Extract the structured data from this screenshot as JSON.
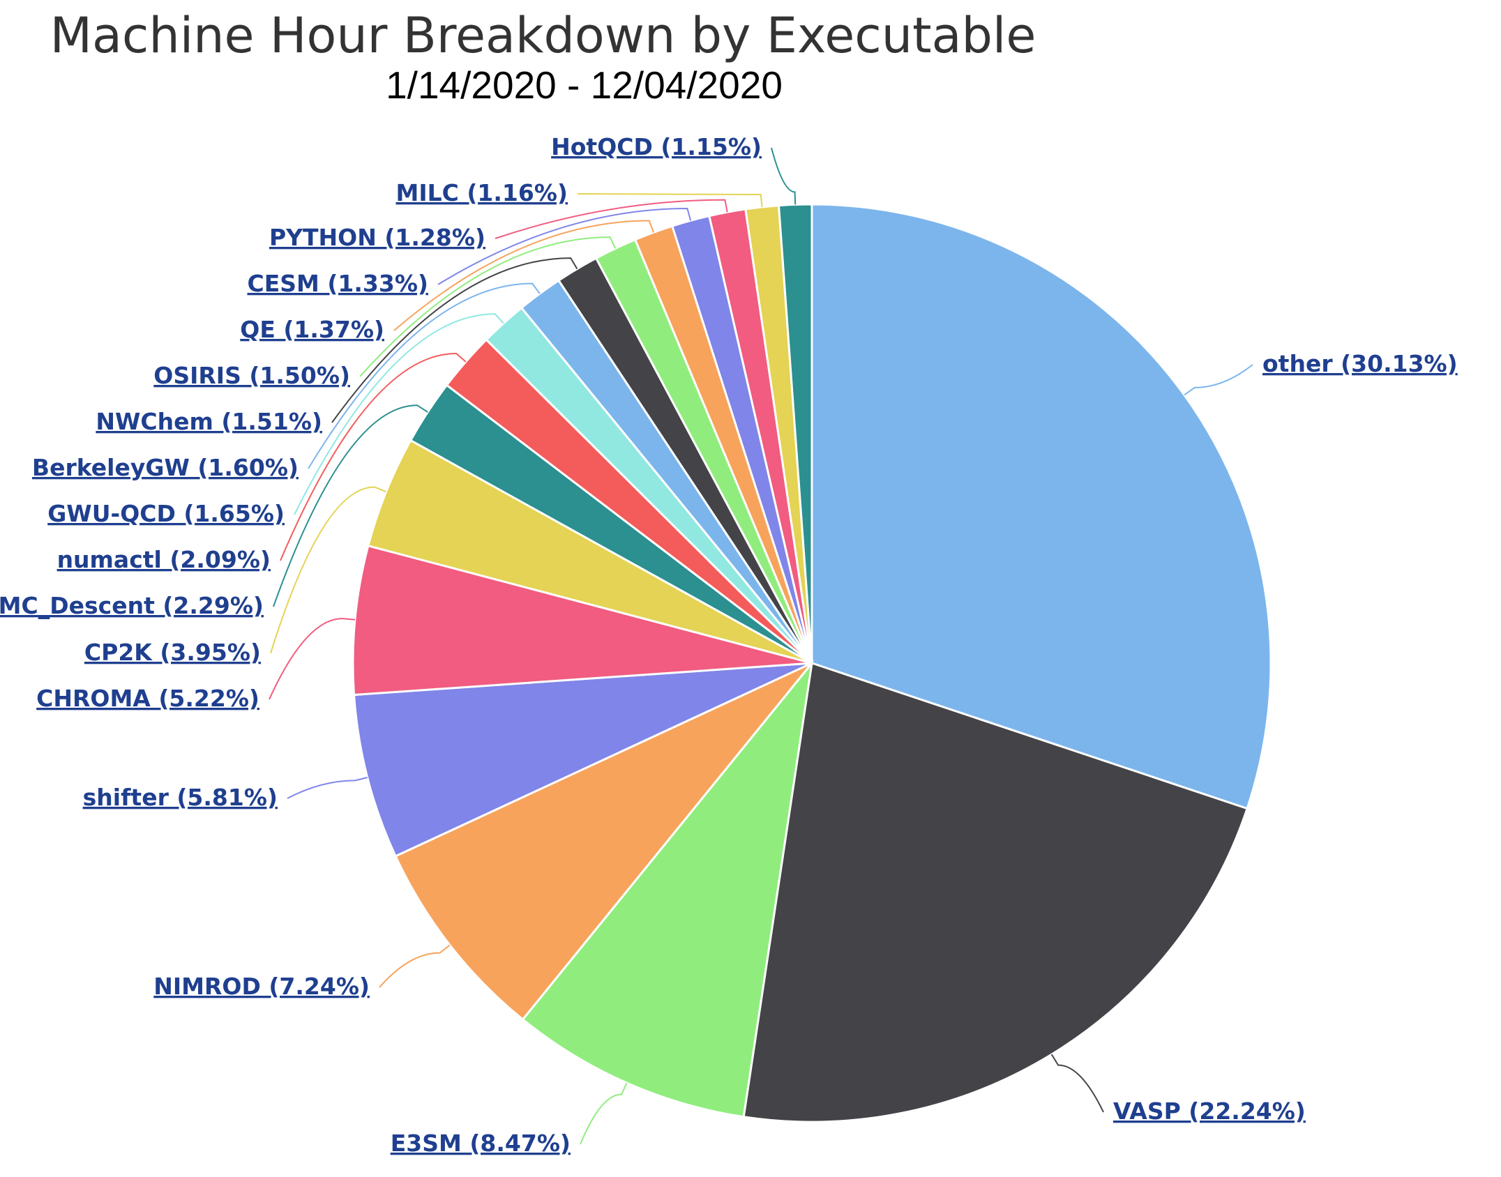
{
  "chart_data": {
    "type": "pie",
    "title": "Machine Hour Breakdown by Executable",
    "subtitle": "1/14/2020 - 12/04/2020",
    "start_angle_deg": 0,
    "direction": "clockwise",
    "slices": [
      {
        "name": "other",
        "value": 30.13,
        "label": "other (30.13%)",
        "color": "#7cb5ec"
      },
      {
        "name": "VASP",
        "value": 22.24,
        "label": "VASP (22.24%)",
        "color": "#434348"
      },
      {
        "name": "E3SM",
        "value": 8.47,
        "label": "E3SM (8.47%)",
        "color": "#90ed7d"
      },
      {
        "name": "NIMROD",
        "value": 7.24,
        "label": "NIMROD (7.24%)",
        "color": "#f7a35c"
      },
      {
        "name": "shifter",
        "value": 5.81,
        "label": "shifter (5.81%)",
        "color": "#8085e9"
      },
      {
        "name": "CHROMA",
        "value": 5.22,
        "label": "CHROMA (5.22%)",
        "color": "#f15c80"
      },
      {
        "name": "CP2K",
        "value": 3.95,
        "label": "CP2K (3.95%)",
        "color": "#e4d354"
      },
      {
        "name": "MC_Descent",
        "value": 2.29,
        "label": "MC_Descent (2.29%)",
        "color": "#2b908f"
      },
      {
        "name": "numactl",
        "value": 2.09,
        "label": "numactl (2.09%)",
        "color": "#f45b5b"
      },
      {
        "name": "GWU-QCD",
        "value": 1.65,
        "label": "GWU-QCD (1.65%)",
        "color": "#91e8e1"
      },
      {
        "name": "BerkeleyGW",
        "value": 1.6,
        "label": "BerkeleyGW (1.60%)",
        "color": "#7cb5ec"
      },
      {
        "name": "NWChem",
        "value": 1.51,
        "label": "NWChem (1.51%)",
        "color": "#434348"
      },
      {
        "name": "OSIRIS",
        "value": 1.5,
        "label": "OSIRIS (1.50%)",
        "color": "#90ed7d"
      },
      {
        "name": "QE",
        "value": 1.37,
        "label": "QE (1.37%)",
        "color": "#f7a35c"
      },
      {
        "name": "CESM",
        "value": 1.33,
        "label": "CESM (1.33%)",
        "color": "#8085e9"
      },
      {
        "name": "PYTHON",
        "value": 1.28,
        "label": "PYTHON (1.28%)",
        "color": "#f15c80"
      },
      {
        "name": "MILC",
        "value": 1.16,
        "label": "MILC (1.16%)",
        "color": "#e4d354"
      },
      {
        "name": "HotQCD",
        "value": 1.15,
        "label": "HotQCD (1.15%)",
        "color": "#2b908f"
      }
    ]
  }
}
